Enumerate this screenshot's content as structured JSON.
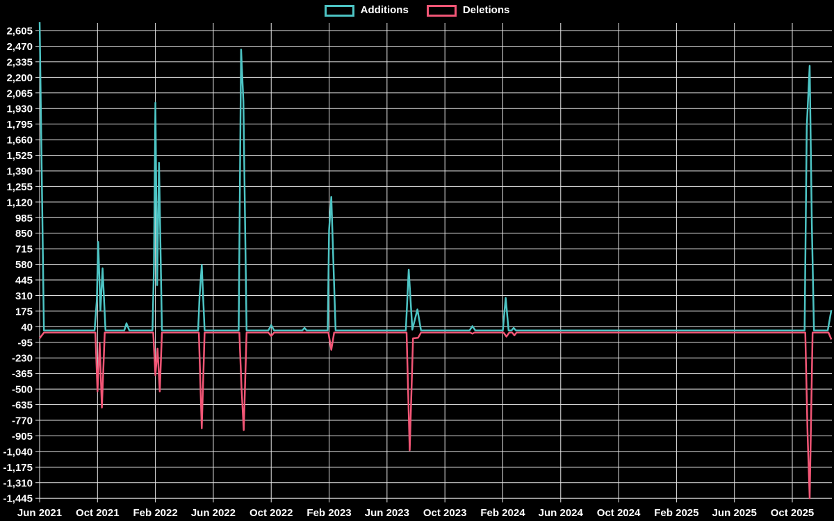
{
  "chart_data": {
    "type": "line",
    "title": "",
    "legend": [
      {
        "label": "Additions",
        "color": "#4dc4c4"
      },
      {
        "label": "Deletions",
        "color": "#f25676"
      }
    ],
    "grid": {
      "color": "#e6e6e6",
      "background": "#000000",
      "grid_on": true,
      "legend_position": "top-center"
    },
    "x_axis": {
      "labels": [
        "Jun 2021",
        "Oct 2021",
        "Feb 2022",
        "Jun 2022",
        "Oct 2022",
        "Feb 2023",
        "Jun 2023",
        "Oct 2023",
        "Feb 2024",
        "Jun 2024",
        "Oct 2024",
        "Feb 2025",
        "Jun 2025",
        "Oct 2025"
      ],
      "month_offsets": [
        0,
        4,
        8,
        12,
        16,
        20,
        24,
        28,
        32,
        36,
        40,
        44,
        48,
        52
      ],
      "t_max": 54.7
    },
    "y_axis": {
      "tick_labels": [
        "2,605",
        "2,470",
        "2,335",
        "2,200",
        "2,065",
        "1,930",
        "1,795",
        "1,660",
        "1,525",
        "1,390",
        "1,255",
        "1,120",
        "985",
        "850",
        "715",
        "580",
        "445",
        "310",
        "175",
        "40",
        "-95",
        "-230",
        "-365",
        "-500",
        "-635",
        "-770",
        "-905",
        "-1,040",
        "-1,175",
        "-1,310",
        "-1,445"
      ],
      "tick_values": [
        2605,
        2470,
        2335,
        2200,
        2065,
        1930,
        1795,
        1660,
        1525,
        1390,
        1255,
        1120,
        985,
        850,
        715,
        580,
        445,
        310,
        175,
        40,
        -95,
        -230,
        -365,
        -500,
        -635,
        -770,
        -905,
        -1040,
        -1175,
        -1310,
        -1445
      ],
      "min": -1445,
      "max": 2605,
      "step": 135
    },
    "series": [
      {
        "name": "Additions",
        "color": "#4dc4c4",
        "points": [
          [
            0,
            2700
          ],
          [
            0.3,
            8
          ],
          [
            3.8,
            8
          ],
          [
            3.95,
            270
          ],
          [
            4.05,
            775
          ],
          [
            4.2,
            180
          ],
          [
            4.35,
            545
          ],
          [
            4.55,
            8
          ],
          [
            5.85,
            8
          ],
          [
            6.0,
            70
          ],
          [
            6.2,
            8
          ],
          [
            7.8,
            8
          ],
          [
            7.9,
            560
          ],
          [
            8.0,
            1980
          ],
          [
            8.12,
            400
          ],
          [
            8.25,
            1460
          ],
          [
            8.45,
            8
          ],
          [
            10.95,
            8
          ],
          [
            11.05,
            300
          ],
          [
            11.2,
            575
          ],
          [
            11.4,
            8
          ],
          [
            13.75,
            8
          ],
          [
            13.92,
            2440
          ],
          [
            14.08,
            1990
          ],
          [
            14.3,
            8
          ],
          [
            15.8,
            8
          ],
          [
            16.0,
            55
          ],
          [
            16.2,
            8
          ],
          [
            18.15,
            8
          ],
          [
            18.3,
            30
          ],
          [
            18.45,
            8
          ],
          [
            19.9,
            8
          ],
          [
            20.0,
            875
          ],
          [
            20.15,
            1165
          ],
          [
            20.3,
            580
          ],
          [
            20.45,
            8
          ],
          [
            25.3,
            8
          ],
          [
            25.5,
            535
          ],
          [
            25.75,
            15
          ],
          [
            26.1,
            190
          ],
          [
            26.35,
            8
          ],
          [
            29.7,
            8
          ],
          [
            29.9,
            45
          ],
          [
            30.1,
            8
          ],
          [
            32.0,
            8
          ],
          [
            32.2,
            290
          ],
          [
            32.4,
            8
          ],
          [
            32.6,
            8
          ],
          [
            32.75,
            30
          ],
          [
            32.9,
            8
          ],
          [
            52.85,
            8
          ],
          [
            53.0,
            1770
          ],
          [
            53.2,
            2300
          ],
          [
            53.35,
            930
          ],
          [
            53.5,
            8
          ],
          [
            54.45,
            8
          ],
          [
            54.7,
            185
          ]
        ]
      },
      {
        "name": "Deletions",
        "color": "#f25676",
        "points": [
          [
            0,
            -60
          ],
          [
            0.3,
            -10
          ],
          [
            3.85,
            -10
          ],
          [
            4.0,
            -520
          ],
          [
            4.15,
            -100
          ],
          [
            4.3,
            -660
          ],
          [
            4.5,
            -10
          ],
          [
            7.85,
            -10
          ],
          [
            8.0,
            -380
          ],
          [
            8.15,
            -150
          ],
          [
            8.3,
            -520
          ],
          [
            8.45,
            -10
          ],
          [
            11.0,
            -10
          ],
          [
            11.2,
            -840
          ],
          [
            11.4,
            -10
          ],
          [
            13.8,
            -10
          ],
          [
            13.95,
            -490
          ],
          [
            14.1,
            -855
          ],
          [
            14.3,
            -10
          ],
          [
            15.8,
            -10
          ],
          [
            16.0,
            -40
          ],
          [
            16.2,
            -10
          ],
          [
            19.95,
            -10
          ],
          [
            20.15,
            -160
          ],
          [
            20.35,
            -10
          ],
          [
            25.35,
            -10
          ],
          [
            25.57,
            -1030
          ],
          [
            25.8,
            -60
          ],
          [
            26.15,
            -55
          ],
          [
            26.35,
            -10
          ],
          [
            29.75,
            -10
          ],
          [
            29.9,
            -20
          ],
          [
            30.05,
            -10
          ],
          [
            32.05,
            -10
          ],
          [
            32.25,
            -45
          ],
          [
            32.45,
            -10
          ],
          [
            32.65,
            -10
          ],
          [
            32.8,
            -35
          ],
          [
            32.95,
            -10
          ],
          [
            52.9,
            -10
          ],
          [
            53.05,
            -870
          ],
          [
            53.2,
            -1445
          ],
          [
            53.4,
            -10
          ],
          [
            54.5,
            -10
          ],
          [
            54.7,
            -70
          ]
        ]
      }
    ]
  }
}
